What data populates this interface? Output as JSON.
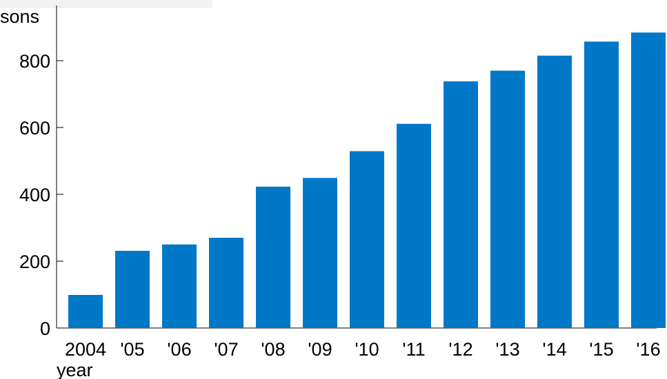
{
  "chart_data": {
    "type": "bar",
    "title": "",
    "xlabel": "year",
    "ylabel": "sons",
    "categories": [
      "2004",
      "'05",
      "'06",
      "'07",
      "'08",
      "'09",
      "'10",
      "'11",
      "'12",
      "'13",
      "'14",
      "'15",
      "'16"
    ],
    "values": [
      99,
      231,
      250,
      270,
      423,
      449,
      529,
      611,
      738,
      770,
      815,
      857,
      884
    ],
    "ylim": [
      0,
      900
    ],
    "yticks": [
      0,
      200,
      400,
      600,
      800
    ],
    "grid": false,
    "legend": "none",
    "bar_color": "#0078c8"
  }
}
